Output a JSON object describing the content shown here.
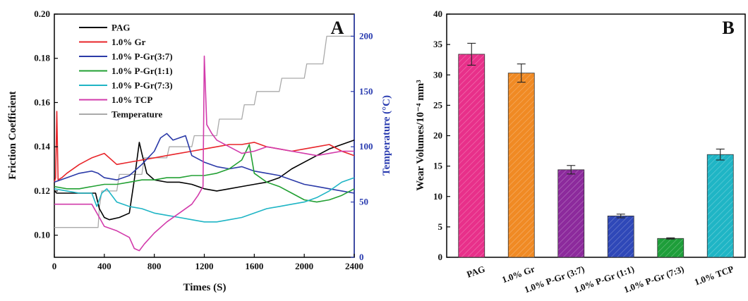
{
  "chart_data": [
    {
      "type": "line",
      "panel_label": "A",
      "xlabel": "Times (S)",
      "ylabel": "Friction Coefficient",
      "y2label": "Temperature (°C)",
      "xlim": [
        0,
        2400
      ],
      "ylim": [
        0.09,
        0.2
      ],
      "y2lim": [
        0,
        220
      ],
      "xticks": [
        "0",
        "400",
        "800",
        "1200",
        "1600",
        "2000",
        "2400"
      ],
      "yticks": [
        "0.10",
        "0.12",
        "0.14",
        "0.16",
        "0.18",
        "0.20"
      ],
      "y2ticks": [
        "0",
        "50",
        "100",
        "150",
        "200"
      ],
      "legend_position": "top-left",
      "series": [
        {
          "name": "PAG",
          "color": "#000000",
          "axis": "left",
          "x": [
            0,
            20,
            100,
            200,
            330,
            360,
            400,
            440,
            520,
            600,
            640,
            680,
            700,
            740,
            800,
            900,
            1000,
            1100,
            1200,
            1300,
            1400,
            1500,
            1600,
            1700,
            1800,
            1900,
            2000,
            2100,
            2200,
            2300,
            2400
          ],
          "y": [
            0.12,
            0.119,
            0.119,
            0.119,
            0.119,
            0.112,
            0.108,
            0.107,
            0.108,
            0.11,
            0.125,
            0.142,
            0.137,
            0.128,
            0.125,
            0.124,
            0.124,
            0.123,
            0.121,
            0.12,
            0.121,
            0.122,
            0.123,
            0.124,
            0.126,
            0.13,
            0.133,
            0.136,
            0.139,
            0.141,
            0.143
          ]
        },
        {
          "name": "1.0% Gr",
          "color": "#e8252a",
          "axis": "left",
          "x": [
            0,
            10,
            20,
            30,
            60,
            100,
            200,
            300,
            400,
            500,
            600,
            700,
            800,
            900,
            1000,
            1100,
            1200,
            1300,
            1400,
            1500,
            1600,
            1700,
            1800,
            1900,
            2000,
            2100,
            2200,
            2300,
            2400
          ],
          "y": [
            0.124,
            0.126,
            0.156,
            0.125,
            0.126,
            0.128,
            0.132,
            0.135,
            0.137,
            0.132,
            0.133,
            0.134,
            0.135,
            0.136,
            0.137,
            0.138,
            0.139,
            0.14,
            0.141,
            0.141,
            0.142,
            0.14,
            0.139,
            0.138,
            0.139,
            0.14,
            0.141,
            0.138,
            0.136
          ]
        },
        {
          "name": "1.0% P-Gr(3:7)",
          "color": "#2b3aa8",
          "axis": "left",
          "x": [
            0,
            100,
            200,
            300,
            350,
            400,
            500,
            600,
            700,
            800,
            850,
            900,
            950,
            1000,
            1050,
            1100,
            1200,
            1300,
            1400,
            1500,
            1600,
            1700,
            1800,
            1900,
            2000,
            2100,
            2200,
            2300,
            2400
          ],
          "y": [
            0.124,
            0.126,
            0.128,
            0.129,
            0.128,
            0.126,
            0.125,
            0.127,
            0.132,
            0.138,
            0.144,
            0.146,
            0.143,
            0.144,
            0.145,
            0.136,
            0.133,
            0.131,
            0.13,
            0.131,
            0.129,
            0.128,
            0.127,
            0.125,
            0.123,
            0.122,
            0.121,
            0.12,
            0.119
          ]
        },
        {
          "name": "1.0% P-Gr(1:1)",
          "color": "#22a033",
          "axis": "left",
          "x": [
            0,
            100,
            200,
            300,
            400,
            500,
            600,
            700,
            800,
            900,
            1000,
            1100,
            1200,
            1300,
            1400,
            1500,
            1560,
            1600,
            1700,
            1800,
            1900,
            2000,
            2100,
            2200,
            2300,
            2400
          ],
          "y": [
            0.122,
            0.121,
            0.121,
            0.122,
            0.123,
            0.123,
            0.124,
            0.125,
            0.125,
            0.126,
            0.126,
            0.127,
            0.127,
            0.128,
            0.13,
            0.134,
            0.141,
            0.128,
            0.124,
            0.122,
            0.119,
            0.116,
            0.115,
            0.116,
            0.118,
            0.121
          ]
        },
        {
          "name": "1.0% P-Gr(7:3)",
          "color": "#1fb5c5",
          "axis": "left",
          "x": [
            0,
            100,
            200,
            300,
            340,
            380,
            420,
            500,
            600,
            700,
            800,
            900,
            1000,
            1100,
            1200,
            1300,
            1400,
            1500,
            1600,
            1700,
            1800,
            1900,
            2000,
            2100,
            2200,
            2300,
            2400
          ],
          "y": [
            0.121,
            0.12,
            0.119,
            0.119,
            0.113,
            0.119,
            0.121,
            0.115,
            0.113,
            0.112,
            0.11,
            0.109,
            0.108,
            0.107,
            0.106,
            0.106,
            0.107,
            0.108,
            0.11,
            0.112,
            0.113,
            0.114,
            0.115,
            0.117,
            0.12,
            0.124,
            0.126
          ]
        },
        {
          "name": "1.0% TCP",
          "color": "#d23bab",
          "axis": "left",
          "x": [
            0,
            100,
            300,
            360,
            400,
            500,
            600,
            640,
            680,
            720,
            800,
            900,
            1000,
            1100,
            1150,
            1190,
            1200,
            1220,
            1260,
            1300,
            1400,
            1500,
            1600,
            1700,
            1800,
            1900,
            2000,
            2100,
            2200,
            2300,
            2400
          ],
          "y": [
            0.114,
            0.114,
            0.114,
            0.108,
            0.104,
            0.102,
            0.099,
            0.094,
            0.093,
            0.096,
            0.101,
            0.106,
            0.11,
            0.114,
            0.118,
            0.122,
            0.181,
            0.15,
            0.146,
            0.143,
            0.14,
            0.137,
            0.138,
            0.14,
            0.139,
            0.138,
            0.137,
            0.136,
            0.137,
            0.138,
            0.138
          ]
        },
        {
          "name": "Temperature",
          "color": "#aaaaaa",
          "axis": "right",
          "x": [
            0,
            350,
            360,
            380,
            500,
            520,
            700,
            720,
            900,
            920,
            1100,
            1120,
            1300,
            1320,
            1500,
            1520,
            1600,
            1620,
            1800,
            1820,
            2000,
            2020,
            2150,
            2180,
            2400
          ],
          "y": [
            27,
            27,
            45,
            60,
            60,
            75,
            75,
            90,
            90,
            100,
            100,
            110,
            110,
            125,
            125,
            138,
            138,
            150,
            150,
            162,
            162,
            175,
            175,
            200,
            200
          ]
        }
      ]
    },
    {
      "type": "bar",
      "panel_label": "B",
      "ylabel": "Wear Volumes/10⁻⁴ mm³",
      "ylim": [
        0,
        40
      ],
      "yticks": [
        "0",
        "5",
        "10",
        "15",
        "20",
        "25",
        "30",
        "35",
        "40"
      ],
      "categories": [
        "PAG",
        "1.0% Gr",
        "1.0% P-Gr (3:7)",
        "1.0% P-Gr (1:1)",
        "1.0% P-Gr (7:3)",
        "1.0% TCP"
      ],
      "values": [
        33.4,
        30.3,
        14.4,
        6.8,
        3.1,
        16.9
      ],
      "errors": [
        1.8,
        1.5,
        0.7,
        0.3,
        0.1,
        0.9
      ],
      "colors": [
        "#e8308a",
        "#f08a24",
        "#8c2a9c",
        "#2f48b8",
        "#1e9e3a",
        "#1fb5c5"
      ]
    }
  ]
}
